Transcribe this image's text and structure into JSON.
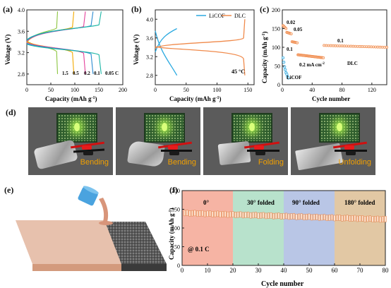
{
  "labels": {
    "a": "(a)",
    "b": "(b)",
    "c": "(c)",
    "d": "(d)",
    "e": "(e)",
    "f": "(f)"
  },
  "panel_a": {
    "ylabel": "Voltage (V)",
    "xlabel": "Capacity (mAh g",
    "yticks": [
      "2.8",
      "3.2",
      "3.6",
      "4.0"
    ],
    "xticks": [
      "0",
      "50",
      "100",
      "150",
      "200"
    ],
    "rates": [
      "1.5",
      "0.5",
      "0.2",
      "0.1",
      "0.05 C"
    ]
  },
  "panel_b": {
    "ylabel": "Voltage (V)",
    "xlabel": "Capacity (mAh g",
    "yticks": [
      "2.8",
      "3.2",
      "3.6",
      "4.0"
    ],
    "xticks": [
      "0",
      "50",
      "100",
      "150"
    ],
    "legend": [
      "LiCOF",
      "DLC"
    ],
    "annotation": "45 °C"
  },
  "panel_c": {
    "ylabel": "Capacity (mAh g",
    "xlabel": "Cycle number",
    "yticks": [
      "0",
      "50",
      "100",
      "150",
      "200"
    ],
    "xticks": [
      "0",
      "40",
      "80",
      "120"
    ],
    "annotations": [
      "0.02",
      "0.05",
      "0.1",
      "0.2 mA cm",
      "0.1",
      "LiCOF",
      "DLC"
    ]
  },
  "panel_d": {
    "captions": [
      "Bending",
      "Bending",
      "Folding",
      "Unfolding"
    ]
  },
  "panel_f": {
    "ylabel": "Capacity (mAh g",
    "xlabel": "Cycle number",
    "yticks": [
      "0",
      "50",
      "100",
      "150",
      "200"
    ],
    "xticks": [
      "0",
      "10",
      "20",
      "30",
      "40",
      "50",
      "60",
      "70",
      "80"
    ],
    "regions": [
      "0°",
      "30° folded",
      "90°  folded",
      "180° folded"
    ],
    "annotation": "@ 0.1 C",
    "region_colors": [
      "#f6b4a4",
      "#b8e2cc",
      "#b9c6e6",
      "#e2c8a4"
    ]
  },
  "chart_data": [
    {
      "type": "line",
      "title": "",
      "xlabel": "Capacity (mAh g-1)",
      "ylabel": "Voltage (V)",
      "xlim": [
        0,
        200
      ],
      "ylim": [
        2.6,
        4.0
      ],
      "series": [
        {
          "name": "1.5",
          "charge_end": [
            64,
            3.97
          ],
          "discharge_end": [
            64,
            2.8
          ]
        },
        {
          "name": "0.5",
          "charge_end": [
            98,
            3.97
          ],
          "discharge_end": [
            98,
            2.8
          ]
        },
        {
          "name": "0.2",
          "charge_end": [
            122,
            3.97
          ],
          "discharge_end": [
            122,
            2.8
          ]
        },
        {
          "name": "0.1",
          "charge_end": [
            138,
            3.97
          ],
          "discharge_end": [
            138,
            2.8
          ]
        },
        {
          "name": "0.05 C",
          "charge_end": [
            155,
            3.97
          ],
          "discharge_end": [
            155,
            2.8
          ]
        }
      ]
    },
    {
      "type": "line",
      "title": "",
      "xlabel": "Capacity (mAh g-1)",
      "ylabel": "Voltage (V)",
      "xlim": [
        0,
        160
      ],
      "ylim": [
        2.6,
        4.2
      ],
      "series": [
        {
          "name": "LiCOF",
          "max_capacity": 35,
          "voltage_range": [
            2.8,
            3.8
          ]
        },
        {
          "name": "DLC",
          "max_capacity": 145,
          "charge_plateau": 3.5,
          "discharge_plateau": 3.35
        }
      ]
    },
    {
      "type": "scatter",
      "title": "",
      "xlabel": "Cycle number",
      "ylabel": "Capacity (mAh g-1)",
      "xlim": [
        0,
        140
      ],
      "ylim": [
        0,
        200
      ],
      "series": [
        {
          "name": "DLC",
          "segments": [
            {
              "rate": "0.02",
              "x": [
                1,
                5
              ],
              "y": [
                158,
                150
              ]
            },
            {
              "rate": "0.05",
              "x": [
                6,
                12
              ],
              "y": [
                140,
                136
              ]
            },
            {
              "rate": "0.1",
              "x": [
                13,
                20
              ],
              "y": [
                115,
                112
              ]
            },
            {
              "rate": "0.2 mA cm-2",
              "x": [
                21,
                55
              ],
              "y": [
                80,
                72
              ]
            },
            {
              "rate": "0.1",
              "x": [
                56,
                140
              ],
              "y": [
                105,
                100
              ]
            }
          ]
        },
        {
          "name": "LiCOF",
          "x": [
            1,
            2,
            3,
            4,
            5,
            6,
            7,
            8
          ],
          "y": [
            72,
            60,
            48,
            40,
            32,
            28,
            22,
            18
          ]
        }
      ]
    },
    {
      "type": "scatter",
      "title": "",
      "xlabel": "Cycle number",
      "ylabel": "Capacity (mAh g-1)",
      "xlim": [
        0,
        80
      ],
      "ylim": [
        0,
        200
      ],
      "series": [
        {
          "name": "",
          "x_range": [
            1,
            80
          ],
          "y_start": 140,
          "y_end": 123
        }
      ]
    }
  ]
}
